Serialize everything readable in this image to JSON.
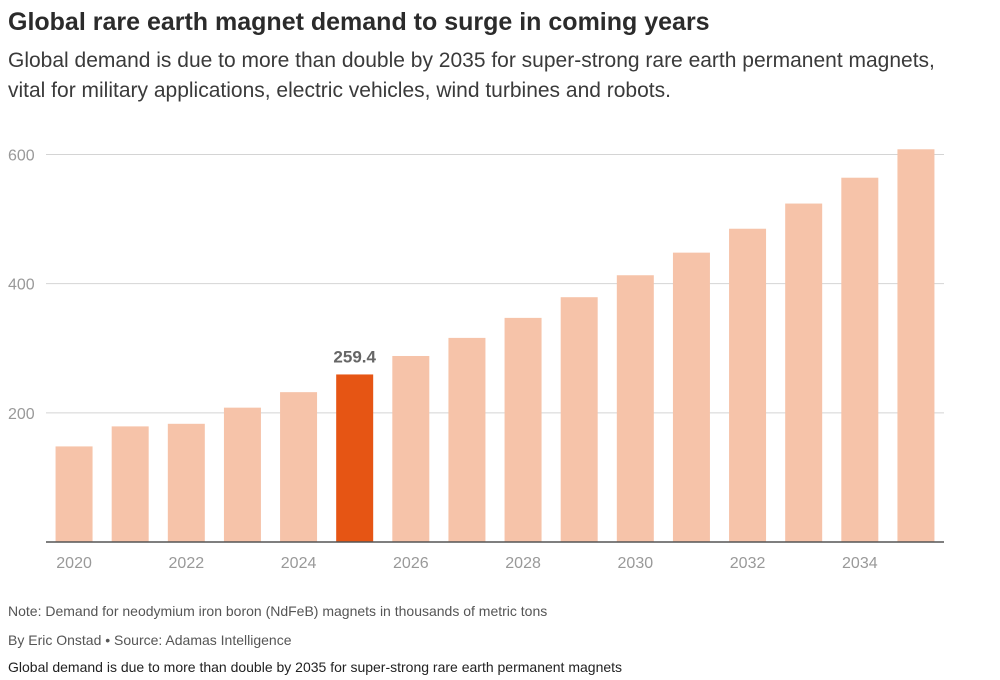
{
  "title": "Global rare earth magnet demand to surge in coming years",
  "subtitle": "Global demand is due to more than double by 2035 for super-strong rare earth permanent magnets, vital for military applications, electric vehicles, wind turbines and robots.",
  "notes": {
    "note": "Note: Demand for neodymium iron boron (NdFeB) magnets in thousands of metric tons",
    "byline": "By Eric Onstad • Source: Adamas Intelligence",
    "caption": "Global demand is due to more than double by 2035 for super-strong rare earth permanent magnets"
  },
  "colors": {
    "bar": "#f6c3a9",
    "highlight": "#e65514",
    "grid": "#d4d4d4",
    "axis": "#555555",
    "tick": "#999999",
    "label": "#666666"
  },
  "chart_data": {
    "type": "bar",
    "categories": [
      "2020",
      "2021",
      "2022",
      "2023",
      "2024",
      "2025",
      "2026",
      "2027",
      "2028",
      "2029",
      "2030",
      "2031",
      "2032",
      "2033",
      "2034",
      "2035"
    ],
    "values": [
      148,
      179,
      183,
      208,
      232,
      259.4,
      288,
      316,
      347,
      379,
      413,
      448,
      485,
      524,
      564,
      608
    ],
    "highlight_index": 5,
    "data_label": "259.4",
    "x_tick_labels": [
      "2020",
      "2022",
      "2024",
      "2026",
      "2028",
      "2030",
      "2032",
      "2034"
    ],
    "y_ticks": [
      200,
      400,
      600
    ],
    "ylim": [
      0,
      610
    ],
    "title": "Global rare earth magnet demand to surge in coming years",
    "xlabel": "",
    "ylabel": "",
    "grid": true
  }
}
